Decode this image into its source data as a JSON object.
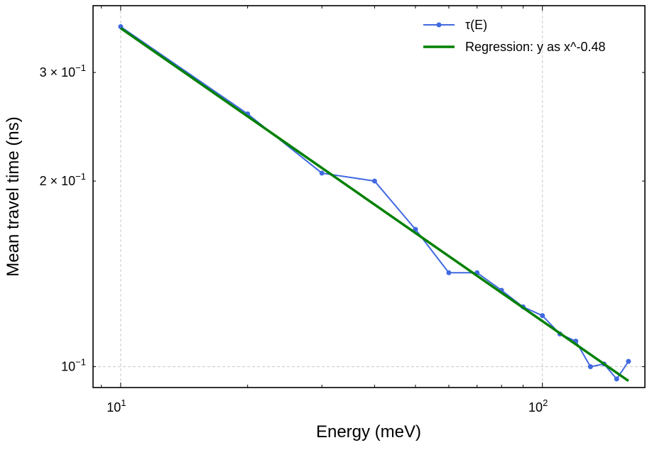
{
  "chart_data": {
    "type": "line",
    "xscale": "log",
    "yscale": "log",
    "xlabel": "Energy (meV)",
    "ylabel": "Mean travel time (ns)",
    "xlim": [
      8.6,
      175
    ],
    "ylim": [
      0.0925,
      0.385
    ],
    "grid": true,
    "legend_position": "top-right",
    "x_ticks": [
      {
        "value": 10,
        "base": "10",
        "exp": "1"
      },
      {
        "value": 100,
        "base": "10",
        "exp": "2"
      }
    ],
    "y_ticks": [
      {
        "value": 0.1,
        "base": "10",
        "exp": "−1",
        "coef": ""
      },
      {
        "value": 0.2,
        "base": "10",
        "exp": "−1",
        "coef": "2 × "
      },
      {
        "value": 0.3,
        "base": "10",
        "exp": "−1",
        "coef": "3 × "
      }
    ],
    "series": [
      {
        "name": "τ(E)",
        "type": "line",
        "marker": "circle",
        "color": "#4169e1",
        "x": [
          10,
          20,
          30,
          40,
          50,
          60,
          70,
          80,
          90,
          100,
          110,
          120,
          130,
          140,
          150,
          160
        ],
        "y": [
          0.356,
          0.257,
          0.206,
          0.2,
          0.167,
          0.142,
          0.142,
          0.133,
          0.125,
          0.121,
          0.113,
          0.11,
          0.1,
          0.101,
          0.0955,
          0.102
        ]
      },
      {
        "name": "Regression: y as x^-0.48",
        "type": "line",
        "color": "#008000",
        "x": [
          10,
          160
        ],
        "y": [
          0.354,
          0.0948
        ]
      }
    ]
  }
}
